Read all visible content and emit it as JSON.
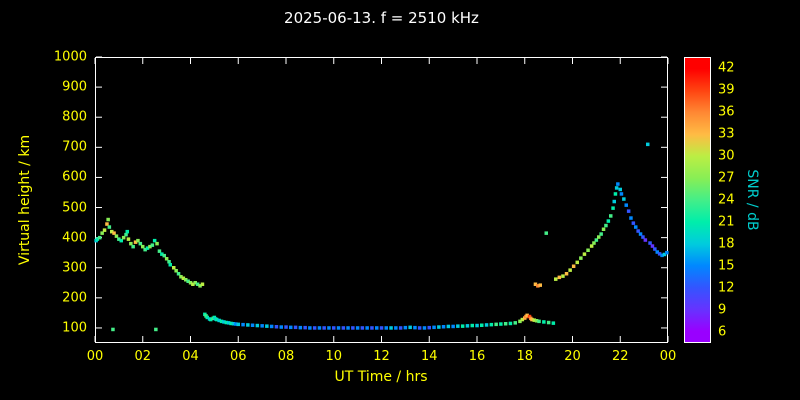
{
  "title": "2025-06-13. f = 2510 kHz",
  "colors": {
    "background": "#000000",
    "frame": "#ffffff",
    "tick_label": "#ffff00",
    "axis_label": "#ffff00",
    "title": "#ffffff",
    "colorbar_label": "#00cccc"
  },
  "chart_data": {
    "type": "scatter",
    "title": "2025-06-13. f = 2510 kHz",
    "xlabel": "UT Time / hrs",
    "ylabel": "Virtual height / km",
    "xlim": [
      0,
      24
    ],
    "ylim": [
      50,
      1000
    ],
    "grid": false,
    "x_ticks": [
      0,
      2,
      4,
      6,
      8,
      10,
      12,
      14,
      16,
      18,
      20,
      22,
      24
    ],
    "x_tick_labels": [
      "00",
      "02",
      "04",
      "06",
      "08",
      "10",
      "12",
      "14",
      "16",
      "18",
      "20",
      "22",
      "00"
    ],
    "y_ticks": [
      100,
      200,
      300,
      400,
      500,
      600,
      700,
      800,
      900,
      1000
    ],
    "colorbar": {
      "label": "SNR / dB",
      "min": 6,
      "max": 42,
      "ticks": [
        6,
        9,
        12,
        15,
        18,
        21,
        24,
        27,
        30,
        33,
        36,
        39,
        42
      ],
      "stops": [
        [
          6,
          "#9900ff"
        ],
        [
          9,
          "#6633ff"
        ],
        [
          12,
          "#3355ff"
        ],
        [
          15,
          "#0088ff"
        ],
        [
          18,
          "#00ccdd"
        ],
        [
          21,
          "#00eeaa"
        ],
        [
          24,
          "#44ee88"
        ],
        [
          27,
          "#88ee55"
        ],
        [
          30,
          "#bbee44"
        ],
        [
          33,
          "#ffbb44"
        ],
        [
          36,
          "#ff8833"
        ],
        [
          39,
          "#ff4411"
        ],
        [
          42,
          "#ff0000"
        ]
      ]
    },
    "points_format": [
      "ut_hours",
      "virtual_height_km",
      "snr_db"
    ],
    "points": [
      [
        0.05,
        390,
        18
      ],
      [
        0.1,
        395,
        21
      ],
      [
        0.2,
        400,
        24
      ],
      [
        0.3,
        415,
        27
      ],
      [
        0.4,
        425,
        30
      ],
      [
        0.5,
        445,
        33
      ],
      [
        0.55,
        460,
        27
      ],
      [
        0.6,
        435,
        24
      ],
      [
        0.7,
        420,
        30
      ],
      [
        0.75,
        95,
        24
      ],
      [
        0.8,
        415,
        33
      ],
      [
        0.9,
        405,
        27
      ],
      [
        1.0,
        395,
        24
      ],
      [
        1.1,
        390,
        21
      ],
      [
        1.2,
        400,
        27
      ],
      [
        1.3,
        410,
        24
      ],
      [
        1.35,
        420,
        21
      ],
      [
        1.4,
        395,
        30
      ],
      [
        1.5,
        380,
        27
      ],
      [
        1.6,
        370,
        24
      ],
      [
        1.7,
        385,
        33
      ],
      [
        1.8,
        390,
        27
      ],
      [
        1.9,
        380,
        24
      ],
      [
        2.0,
        370,
        27
      ],
      [
        2.1,
        360,
        24
      ],
      [
        2.2,
        365,
        21
      ],
      [
        2.3,
        370,
        27
      ],
      [
        2.4,
        375,
        24
      ],
      [
        2.5,
        390,
        21
      ],
      [
        2.55,
        95,
        24
      ],
      [
        2.6,
        380,
        27
      ],
      [
        2.7,
        355,
        24
      ],
      [
        2.8,
        345,
        21
      ],
      [
        2.9,
        340,
        24
      ],
      [
        3.0,
        330,
        27
      ],
      [
        3.1,
        320,
        24
      ],
      [
        3.15,
        310,
        21
      ],
      [
        3.3,
        300,
        30
      ],
      [
        3.4,
        290,
        27
      ],
      [
        3.5,
        280,
        24
      ],
      [
        3.6,
        270,
        27
      ],
      [
        3.7,
        265,
        30
      ],
      [
        3.8,
        260,
        27
      ],
      [
        3.9,
        255,
        24
      ],
      [
        4.0,
        250,
        27
      ],
      [
        4.1,
        245,
        30
      ],
      [
        4.2,
        250,
        27
      ],
      [
        4.3,
        245,
        24
      ],
      [
        4.4,
        240,
        27
      ],
      [
        4.5,
        245,
        30
      ],
      [
        4.6,
        145,
        21
      ],
      [
        4.65,
        140,
        24
      ],
      [
        4.7,
        135,
        21
      ],
      [
        4.8,
        130,
        18
      ],
      [
        4.85,
        128,
        21
      ],
      [
        4.95,
        132,
        24
      ],
      [
        5.0,
        135,
        21
      ],
      [
        5.05,
        130,
        18
      ],
      [
        5.1,
        128,
        21
      ],
      [
        5.2,
        125,
        18
      ],
      [
        5.3,
        122,
        21
      ],
      [
        5.4,
        120,
        18
      ],
      [
        5.5,
        118,
        21
      ],
      [
        5.6,
        117,
        18
      ],
      [
        5.7,
        115,
        21
      ],
      [
        5.8,
        114,
        18
      ],
      [
        5.9,
        113,
        15
      ],
      [
        6.0,
        112,
        18
      ],
      [
        6.2,
        111,
        15
      ],
      [
        6.4,
        110,
        18
      ],
      [
        6.6,
        109,
        15
      ],
      [
        6.8,
        108,
        18
      ],
      [
        7.0,
        107,
        15
      ],
      [
        7.2,
        106,
        18
      ],
      [
        7.4,
        105,
        15
      ],
      [
        7.6,
        104,
        12
      ],
      [
        7.8,
        103,
        15
      ],
      [
        8.0,
        103,
        12
      ],
      [
        8.2,
        102,
        15
      ],
      [
        8.4,
        102,
        12
      ],
      [
        8.6,
        101,
        15
      ],
      [
        8.8,
        101,
        12
      ],
      [
        9.0,
        100,
        15
      ],
      [
        9.2,
        100,
        12
      ],
      [
        9.4,
        100,
        15
      ],
      [
        9.6,
        100,
        12
      ],
      [
        9.8,
        100,
        15
      ],
      [
        10.0,
        100,
        12
      ],
      [
        10.2,
        100,
        15
      ],
      [
        10.4,
        100,
        12
      ],
      [
        10.6,
        100,
        15
      ],
      [
        10.8,
        100,
        12
      ],
      [
        11.0,
        100,
        15
      ],
      [
        11.2,
        100,
        12
      ],
      [
        11.4,
        100,
        15
      ],
      [
        11.6,
        100,
        12
      ],
      [
        11.8,
        100,
        15
      ],
      [
        12.0,
        100,
        12
      ],
      [
        12.2,
        100,
        15
      ],
      [
        12.4,
        100,
        18
      ],
      [
        12.6,
        100,
        15
      ],
      [
        12.8,
        100,
        12
      ],
      [
        13.0,
        101,
        15
      ],
      [
        13.2,
        102,
        18
      ],
      [
        13.4,
        101,
        15
      ],
      [
        13.6,
        100,
        12
      ],
      [
        13.8,
        100,
        15
      ],
      [
        14.0,
        101,
        12
      ],
      [
        14.2,
        102,
        15
      ],
      [
        14.4,
        103,
        18
      ],
      [
        14.6,
        104,
        15
      ],
      [
        14.8,
        105,
        18
      ],
      [
        15.0,
        105,
        15
      ],
      [
        15.2,
        106,
        18
      ],
      [
        15.4,
        106,
        21
      ],
      [
        15.6,
        107,
        18
      ],
      [
        15.8,
        108,
        21
      ],
      [
        16.0,
        108,
        18
      ],
      [
        16.2,
        109,
        21
      ],
      [
        16.4,
        110,
        18
      ],
      [
        16.6,
        111,
        21
      ],
      [
        16.8,
        112,
        24
      ],
      [
        17.0,
        113,
        21
      ],
      [
        17.2,
        114,
        24
      ],
      [
        17.4,
        115,
        21
      ],
      [
        17.6,
        117,
        24
      ],
      [
        17.8,
        122,
        27
      ],
      [
        17.9,
        128,
        30
      ],
      [
        18.0,
        133,
        33
      ],
      [
        18.05,
        138,
        36
      ],
      [
        18.1,
        142,
        33
      ],
      [
        18.2,
        138,
        39
      ],
      [
        18.25,
        132,
        36
      ],
      [
        18.3,
        128,
        33
      ],
      [
        18.4,
        126,
        30
      ],
      [
        18.5,
        124,
        27
      ],
      [
        18.6,
        122,
        24
      ],
      [
        18.8,
        120,
        21
      ],
      [
        19.0,
        118,
        24
      ],
      [
        19.2,
        116,
        21
      ],
      [
        18.45,
        245,
        33
      ],
      [
        18.55,
        240,
        36
      ],
      [
        18.65,
        242,
        33
      ],
      [
        18.9,
        415,
        24
      ],
      [
        19.3,
        262,
        30
      ],
      [
        19.45,
        268,
        33
      ],
      [
        19.6,
        272,
        30
      ],
      [
        19.75,
        280,
        33
      ],
      [
        19.9,
        292,
        30
      ],
      [
        20.05,
        305,
        33
      ],
      [
        20.2,
        318,
        30
      ],
      [
        20.35,
        332,
        27
      ],
      [
        20.5,
        345,
        30
      ],
      [
        20.65,
        358,
        27
      ],
      [
        20.8,
        372,
        30
      ],
      [
        20.9,
        382,
        27
      ],
      [
        21.0,
        392,
        24
      ],
      [
        21.1,
        402,
        27
      ],
      [
        21.2,
        412,
        24
      ],
      [
        21.3,
        428,
        27
      ],
      [
        21.4,
        440,
        24
      ],
      [
        21.5,
        455,
        21
      ],
      [
        21.6,
        472,
        24
      ],
      [
        21.7,
        498,
        21
      ],
      [
        21.75,
        520,
        18
      ],
      [
        21.8,
        545,
        21
      ],
      [
        21.85,
        565,
        18
      ],
      [
        21.9,
        578,
        15
      ],
      [
        22.0,
        560,
        18
      ],
      [
        22.05,
        545,
        15
      ],
      [
        22.15,
        528,
        18
      ],
      [
        22.25,
        508,
        15
      ],
      [
        22.35,
        488,
        12
      ],
      [
        22.45,
        465,
        15
      ],
      [
        22.55,
        448,
        12
      ],
      [
        22.65,
        435,
        15
      ],
      [
        22.75,
        422,
        12
      ],
      [
        22.85,
        412,
        15
      ],
      [
        22.95,
        402,
        12
      ],
      [
        23.05,
        392,
        9
      ],
      [
        23.15,
        710,
        18
      ],
      [
        23.25,
        382,
        12
      ],
      [
        23.35,
        372,
        9
      ],
      [
        23.45,
        362,
        12
      ],
      [
        23.55,
        352,
        15
      ],
      [
        23.65,
        346,
        12
      ],
      [
        23.75,
        341,
        15
      ],
      [
        23.85,
        344,
        18
      ],
      [
        23.95,
        350,
        15
      ]
    ]
  }
}
